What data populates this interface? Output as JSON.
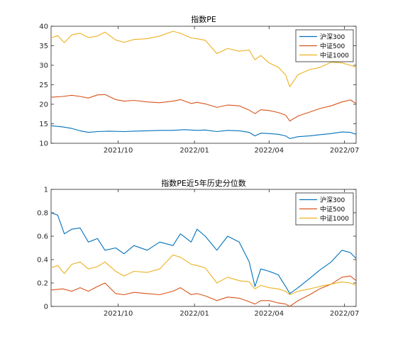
{
  "chart_data": [
    {
      "type": "line",
      "title": "指数PE",
      "xlabel": "",
      "ylabel": "",
      "ylim": [
        10,
        40
      ],
      "yticks": [
        10,
        15,
        20,
        25,
        30,
        35,
        40
      ],
      "xlim": [
        "2021-07-12",
        "2022-07-15"
      ],
      "xticks": [
        {
          "date": "2021-10-01",
          "label": "2021/10"
        },
        {
          "date": "2022-01-01",
          "label": "2022/01"
        },
        {
          "date": "2022-04-01",
          "label": "2022/04"
        },
        {
          "date": "2022-07-01",
          "label": "2022/07"
        }
      ],
      "grid": false,
      "legend_position": "top-right",
      "series": [
        {
          "name": "沪深300",
          "color": "#0072BD",
          "points": [
            [
              "2021-07-12",
              14.5
            ],
            [
              "2021-07-26",
              14.2
            ],
            [
              "2021-08-06",
              13.8
            ],
            [
              "2021-08-16",
              13.2
            ],
            [
              "2021-08-26",
              12.8
            ],
            [
              "2021-09-06",
              13.0
            ],
            [
              "2021-09-20",
              13.1
            ],
            [
              "2021-10-08",
              13.0
            ],
            [
              "2021-10-20",
              13.1
            ],
            [
              "2021-11-05",
              13.2
            ],
            [
              "2021-11-20",
              13.3
            ],
            [
              "2021-12-06",
              13.3
            ],
            [
              "2021-12-20",
              13.5
            ],
            [
              "2022-01-04",
              13.3
            ],
            [
              "2022-01-14",
              13.4
            ],
            [
              "2022-01-28",
              13.0
            ],
            [
              "2022-02-10",
              13.3
            ],
            [
              "2022-02-24",
              13.2
            ],
            [
              "2022-03-08",
              12.8
            ],
            [
              "2022-03-15",
              11.9
            ],
            [
              "2022-03-22",
              12.6
            ],
            [
              "2022-04-01",
              12.5
            ],
            [
              "2022-04-12",
              12.3
            ],
            [
              "2022-04-21",
              11.9
            ],
            [
              "2022-04-26",
              11.2
            ],
            [
              "2022-05-06",
              11.7
            ],
            [
              "2022-05-20",
              11.9
            ],
            [
              "2022-06-01",
              12.2
            ],
            [
              "2022-06-15",
              12.5
            ],
            [
              "2022-06-28",
              12.9
            ],
            [
              "2022-07-08",
              12.8
            ],
            [
              "2022-07-15",
              12.3
            ]
          ]
        },
        {
          "name": "中证500",
          "color": "#D95319",
          "points": [
            [
              "2021-07-12",
              21.8
            ],
            [
              "2021-07-26",
              22.0
            ],
            [
              "2021-08-06",
              22.3
            ],
            [
              "2021-08-16",
              22.0
            ],
            [
              "2021-08-26",
              21.6
            ],
            [
              "2021-09-06",
              22.4
            ],
            [
              "2021-09-15",
              22.5
            ],
            [
              "2021-09-28",
              21.2
            ],
            [
              "2021-10-08",
              20.8
            ],
            [
              "2021-10-20",
              21.0
            ],
            [
              "2021-11-05",
              20.6
            ],
            [
              "2021-11-20",
              20.4
            ],
            [
              "2021-12-06",
              20.8
            ],
            [
              "2021-12-15",
              21.2
            ],
            [
              "2021-12-28",
              20.2
            ],
            [
              "2022-01-04",
              20.5
            ],
            [
              "2022-01-14",
              20.1
            ],
            [
              "2022-01-28",
              19.2
            ],
            [
              "2022-02-10",
              19.8
            ],
            [
              "2022-02-24",
              19.6
            ],
            [
              "2022-03-08",
              18.5
            ],
            [
              "2022-03-15",
              17.6
            ],
            [
              "2022-03-22",
              18.6
            ],
            [
              "2022-04-01",
              18.4
            ],
            [
              "2022-04-12",
              17.9
            ],
            [
              "2022-04-21",
              17.2
            ],
            [
              "2022-04-26",
              15.7
            ],
            [
              "2022-05-06",
              17.0
            ],
            [
              "2022-05-20",
              18.0
            ],
            [
              "2022-06-01",
              18.9
            ],
            [
              "2022-06-15",
              19.6
            ],
            [
              "2022-06-28",
              20.6
            ],
            [
              "2022-07-08",
              21.1
            ],
            [
              "2022-07-15",
              20.2
            ]
          ]
        },
        {
          "name": "中证1000",
          "color": "#EDB120",
          "points": [
            [
              "2021-07-12",
              37.0
            ],
            [
              "2021-07-20",
              37.6
            ],
            [
              "2021-07-28",
              35.8
            ],
            [
              "2021-08-06",
              37.8
            ],
            [
              "2021-08-16",
              38.2
            ],
            [
              "2021-08-26",
              37.1
            ],
            [
              "2021-09-06",
              37.5
            ],
            [
              "2021-09-15",
              38.5
            ],
            [
              "2021-09-28",
              36.5
            ],
            [
              "2021-10-08",
              35.9
            ],
            [
              "2021-10-20",
              36.6
            ],
            [
              "2021-11-05",
              36.8
            ],
            [
              "2021-11-20",
              37.5
            ],
            [
              "2021-12-06",
              38.7
            ],
            [
              "2021-12-15",
              38.2
            ],
            [
              "2021-12-28",
              37.0
            ],
            [
              "2022-01-04",
              36.8
            ],
            [
              "2022-01-14",
              36.4
            ],
            [
              "2022-01-28",
              33.0
            ],
            [
              "2022-02-10",
              34.3
            ],
            [
              "2022-02-24",
              33.6
            ],
            [
              "2022-03-08",
              33.9
            ],
            [
              "2022-03-15",
              31.4
            ],
            [
              "2022-03-22",
              32.5
            ],
            [
              "2022-04-01",
              30.6
            ],
            [
              "2022-04-12",
              29.5
            ],
            [
              "2022-04-21",
              27.5
            ],
            [
              "2022-04-26",
              24.5
            ],
            [
              "2022-05-06",
              27.6
            ],
            [
              "2022-05-20",
              28.9
            ],
            [
              "2022-06-01",
              29.4
            ],
            [
              "2022-06-15",
              30.8
            ],
            [
              "2022-06-28",
              30.6
            ],
            [
              "2022-07-08",
              30.0
            ],
            [
              "2022-07-15",
              29.5
            ]
          ]
        }
      ]
    },
    {
      "type": "line",
      "title": "指数PE近5年历史分位数",
      "xlabel": "",
      "ylabel": "",
      "ylim": [
        0,
        1
      ],
      "yticks": [
        0,
        0.2,
        0.4,
        0.6,
        0.8,
        1
      ],
      "ytick_labels": [
        "0",
        "0.2",
        "0.4",
        "0.6",
        "0.8",
        "1"
      ],
      "xlim": [
        "2021-07-12",
        "2022-07-15"
      ],
      "xticks": [
        {
          "date": "2021-10-01",
          "label": "2021/10"
        },
        {
          "date": "2022-01-01",
          "label": "2022/01"
        },
        {
          "date": "2022-04-01",
          "label": "2022/04"
        },
        {
          "date": "2022-07-01",
          "label": "2022/07"
        }
      ],
      "grid": false,
      "legend_position": "top-right",
      "series": [
        {
          "name": "沪深300",
          "color": "#0072BD",
          "points": [
            [
              "2021-07-12",
              0.8
            ],
            [
              "2021-07-20",
              0.78
            ],
            [
              "2021-07-28",
              0.62
            ],
            [
              "2021-08-06",
              0.66
            ],
            [
              "2021-08-16",
              0.67
            ],
            [
              "2021-08-26",
              0.55
            ],
            [
              "2021-09-06",
              0.58
            ],
            [
              "2021-09-15",
              0.48
            ],
            [
              "2021-09-28",
              0.5
            ],
            [
              "2021-10-08",
              0.45
            ],
            [
              "2021-10-20",
              0.52
            ],
            [
              "2021-11-05",
              0.48
            ],
            [
              "2021-11-20",
              0.55
            ],
            [
              "2021-12-06",
              0.52
            ],
            [
              "2021-12-15",
              0.62
            ],
            [
              "2021-12-28",
              0.55
            ],
            [
              "2022-01-04",
              0.66
            ],
            [
              "2022-01-14",
              0.6
            ],
            [
              "2022-01-28",
              0.48
            ],
            [
              "2022-02-10",
              0.6
            ],
            [
              "2022-02-24",
              0.55
            ],
            [
              "2022-03-08",
              0.38
            ],
            [
              "2022-03-15",
              0.17
            ],
            [
              "2022-03-22",
              0.32
            ],
            [
              "2022-04-01",
              0.3
            ],
            [
              "2022-04-12",
              0.27
            ],
            [
              "2022-04-21",
              0.17
            ],
            [
              "2022-04-26",
              0.11
            ],
            [
              "2022-05-06",
              0.16
            ],
            [
              "2022-05-20",
              0.24
            ],
            [
              "2022-06-01",
              0.31
            ],
            [
              "2022-06-15",
              0.38
            ],
            [
              "2022-06-28",
              0.48
            ],
            [
              "2022-07-08",
              0.46
            ],
            [
              "2022-07-15",
              0.41
            ]
          ]
        },
        {
          "name": "中证500",
          "color": "#D95319",
          "points": [
            [
              "2021-07-12",
              0.14
            ],
            [
              "2021-07-26",
              0.15
            ],
            [
              "2021-08-06",
              0.13
            ],
            [
              "2021-08-16",
              0.16
            ],
            [
              "2021-08-26",
              0.13
            ],
            [
              "2021-09-06",
              0.17
            ],
            [
              "2021-09-15",
              0.2
            ],
            [
              "2021-09-28",
              0.11
            ],
            [
              "2021-10-08",
              0.1
            ],
            [
              "2021-10-20",
              0.12
            ],
            [
              "2021-11-05",
              0.11
            ],
            [
              "2021-11-20",
              0.1
            ],
            [
              "2021-12-06",
              0.13
            ],
            [
              "2021-12-15",
              0.16
            ],
            [
              "2021-12-28",
              0.1
            ],
            [
              "2022-01-04",
              0.11
            ],
            [
              "2022-01-14",
              0.09
            ],
            [
              "2022-01-28",
              0.05
            ],
            [
              "2022-02-10",
              0.08
            ],
            [
              "2022-02-24",
              0.07
            ],
            [
              "2022-03-08",
              0.04
            ],
            [
              "2022-03-15",
              0.02
            ],
            [
              "2022-03-22",
              0.05
            ],
            [
              "2022-04-01",
              0.05
            ],
            [
              "2022-04-12",
              0.03
            ],
            [
              "2022-04-21",
              0.02
            ],
            [
              "2022-04-26",
              0.0
            ],
            [
              "2022-05-06",
              0.05
            ],
            [
              "2022-05-20",
              0.1
            ],
            [
              "2022-06-01",
              0.15
            ],
            [
              "2022-06-15",
              0.19
            ],
            [
              "2022-06-28",
              0.25
            ],
            [
              "2022-07-08",
              0.26
            ],
            [
              "2022-07-15",
              0.22
            ]
          ]
        },
        {
          "name": "中证1000",
          "color": "#EDB120",
          "points": [
            [
              "2021-07-12",
              0.33
            ],
            [
              "2021-07-20",
              0.35
            ],
            [
              "2021-07-28",
              0.28
            ],
            [
              "2021-08-06",
              0.36
            ],
            [
              "2021-08-16",
              0.38
            ],
            [
              "2021-08-26",
              0.32
            ],
            [
              "2021-09-06",
              0.34
            ],
            [
              "2021-09-15",
              0.38
            ],
            [
              "2021-09-28",
              0.3
            ],
            [
              "2021-10-08",
              0.26
            ],
            [
              "2021-10-20",
              0.3
            ],
            [
              "2021-11-05",
              0.29
            ],
            [
              "2021-11-20",
              0.32
            ],
            [
              "2021-12-06",
              0.44
            ],
            [
              "2021-12-15",
              0.42
            ],
            [
              "2021-12-28",
              0.36
            ],
            [
              "2022-01-04",
              0.35
            ],
            [
              "2022-01-14",
              0.33
            ],
            [
              "2022-01-28",
              0.2
            ],
            [
              "2022-02-10",
              0.25
            ],
            [
              "2022-02-24",
              0.22
            ],
            [
              "2022-03-08",
              0.21
            ],
            [
              "2022-03-15",
              0.15
            ],
            [
              "2022-03-22",
              0.18
            ],
            [
              "2022-04-01",
              0.16
            ],
            [
              "2022-04-12",
              0.15
            ],
            [
              "2022-04-21",
              0.13
            ],
            [
              "2022-04-26",
              0.1
            ],
            [
              "2022-05-06",
              0.13
            ],
            [
              "2022-05-20",
              0.15
            ],
            [
              "2022-06-01",
              0.17
            ],
            [
              "2022-06-15",
              0.19
            ],
            [
              "2022-06-28",
              0.21
            ],
            [
              "2022-07-08",
              0.2
            ],
            [
              "2022-07-15",
              0.18
            ]
          ]
        }
      ]
    }
  ]
}
